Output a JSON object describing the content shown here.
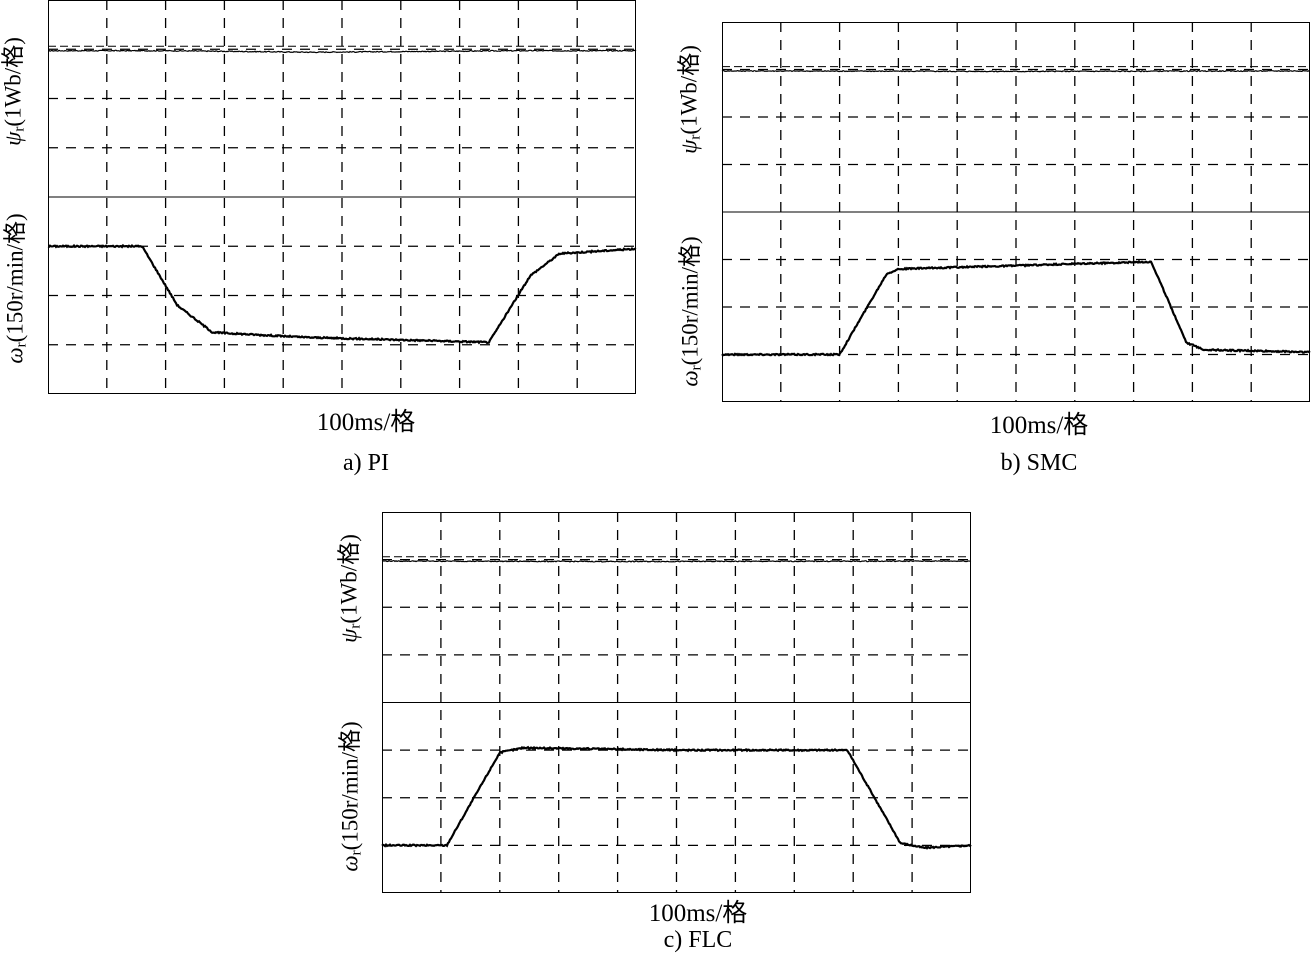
{
  "panels": [
    {
      "caption": "a) PI",
      "xlabel": "100ms/格",
      "ylabel_flux": {
        "sym": "ψ",
        "sub": "r",
        "unit": "(1Wb/格)"
      },
      "ylabel_speed": {
        "sym": "ω",
        "sub": "r",
        "unit": "(150r/min/格)"
      }
    },
    {
      "caption": "b) SMC",
      "xlabel": "100ms/格",
      "ylabel_flux": {
        "sym": "ψ",
        "sub": "r",
        "unit": "(1Wb/格)"
      },
      "ylabel_speed": {
        "sym": "ω",
        "sub": "r",
        "unit": "(150r/min/格)"
      }
    },
    {
      "caption": "c) FLC",
      "xlabel": "100ms/格",
      "ylabel_flux": {
        "sym": "ψ",
        "sub": "r",
        "unit": "(1Wb/格)"
      },
      "ylabel_speed": {
        "sym": "ω",
        "sub": "r",
        "unit": "(150r/min/格)"
      }
    }
  ],
  "chart_data": [
    {
      "type": "line",
      "title": "a) PI",
      "xlabel": "100ms/格",
      "grid": true,
      "xlim": [
        0,
        1000
      ],
      "flux": {
        "ylabel": "ψr (1Wb/格)",
        "ylim": [
          0,
          4
        ],
        "x": [
          0,
          200,
          450,
          800,
          1000
        ],
        "y": [
          2.97,
          2.97,
          2.94,
          2.97,
          2.97
        ]
      },
      "speed": {
        "ylabel": "ωr (150r/min/格)",
        "ylim": [
          0,
          4
        ],
        "x": [
          0,
          160,
          220,
          280,
          440,
          750,
          820,
          870,
          1000
        ],
        "y": [
          3.0,
          3.0,
          1.8,
          1.25,
          1.15,
          1.05,
          2.4,
          2.85,
          2.95
        ]
      }
    },
    {
      "type": "line",
      "title": "b) SMC",
      "xlabel": "100ms/格",
      "grid": true,
      "xlim": [
        0,
        1000
      ],
      "flux": {
        "ylabel": "ψr (1Wb/格)",
        "ylim": [
          0,
          4
        ],
        "x": [
          0,
          500,
          1000
        ],
        "y": [
          2.97,
          2.96,
          2.97
        ]
      },
      "speed": {
        "ylabel": "ωr (150r/min/格)",
        "ylim": [
          0,
          4
        ],
        "x": [
          0,
          200,
          280,
          300,
          720,
          730,
          790,
          820,
          1000
        ],
        "y": [
          1.0,
          1.0,
          2.7,
          2.8,
          2.95,
          2.95,
          1.25,
          1.1,
          1.05
        ]
      }
    },
    {
      "type": "line",
      "title": "c) FLC",
      "xlabel": "100ms/格",
      "grid": true,
      "xlim": [
        0,
        1000
      ],
      "flux": {
        "ylabel": "ψr (1Wb/格)",
        "ylim": [
          0,
          4
        ],
        "x": [
          0,
          400,
          1000
        ],
        "y": [
          2.97,
          2.96,
          2.97
        ]
      },
      "speed": {
        "ylabel": "ωr (150r/min/格)",
        "ylim": [
          0,
          4
        ],
        "x": [
          0,
          110,
          200,
          240,
          500,
          790,
          880,
          920,
          1000
        ],
        "y": [
          1.0,
          1.0,
          2.95,
          3.05,
          3.0,
          3.0,
          1.05,
          0.95,
          1.0
        ]
      }
    }
  ]
}
